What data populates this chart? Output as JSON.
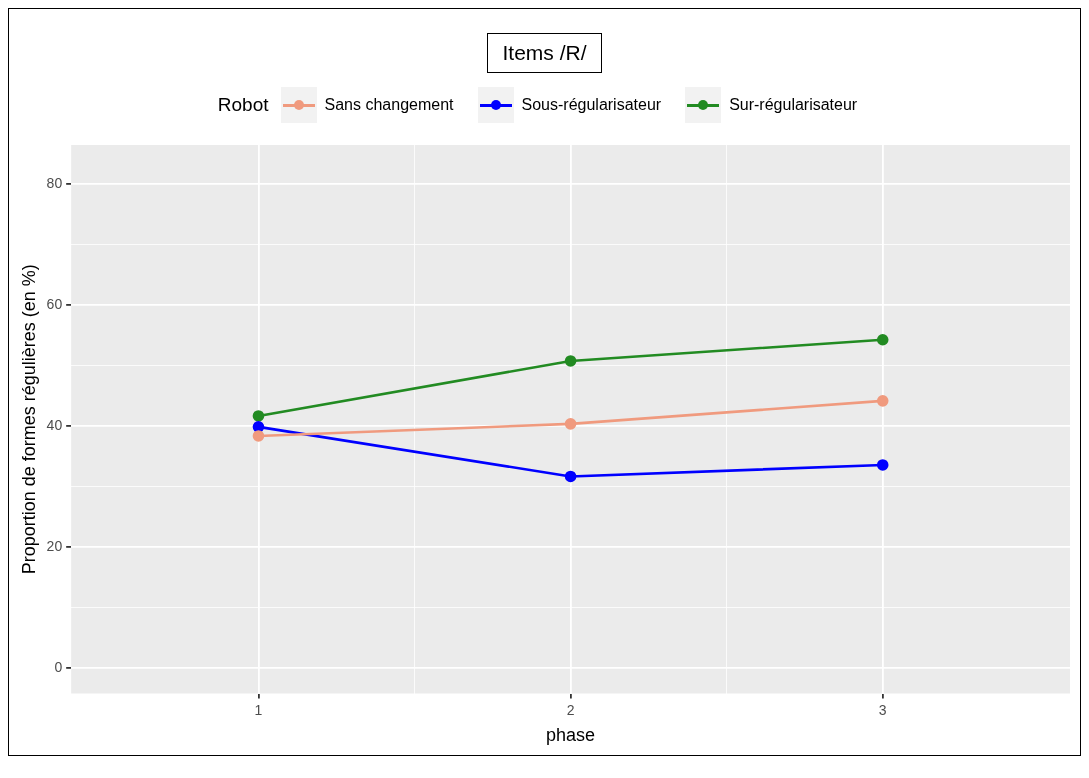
{
  "chart_data": {
    "type": "line",
    "title": "Items /R/",
    "xlabel": "phase",
    "ylabel": "Proportion de formes régulières (en %)",
    "legend_title": "Robot",
    "legend": "top",
    "grid": true,
    "marker": "circle",
    "line_style": "solid",
    "x": [
      1,
      2,
      3
    ],
    "xlim": [
      0.4,
      3.6
    ],
    "xticks": [
      1,
      {
        "value": 1.5,
        "label": null
      },
      2,
      {
        "value": 2.5,
        "label": null
      },
      3
    ],
    "ylim": [
      -4.2,
      86.5
    ],
    "yticks": [
      0,
      {
        "value": 10,
        "label": null
      },
      20,
      {
        "value": 30,
        "label": null
      },
      40,
      {
        "value": 50,
        "label": null
      },
      60,
      {
        "value": 70,
        "label": null
      },
      80
    ],
    "series": [
      {
        "name": "Sans changement",
        "color": "#f09a7e",
        "values": [
          38.4,
          40.4,
          44.2
        ]
      },
      {
        "name": "Sous-régularisateur",
        "color": "#0000ff",
        "values": [
          39.9,
          31.7,
          33.6
        ]
      },
      {
        "name": "Sur-régularisateur",
        "color": "#228b22",
        "values": [
          41.7,
          50.8,
          54.3
        ]
      }
    ]
  }
}
